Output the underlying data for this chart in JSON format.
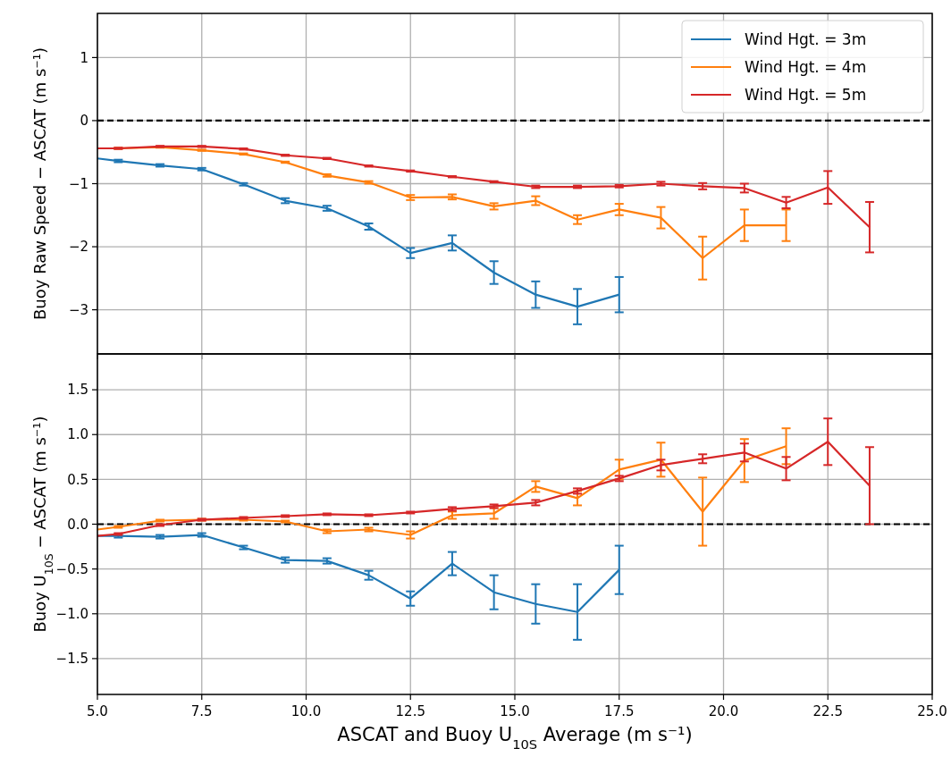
{
  "chart_data": [
    {
      "type": "line",
      "ylabel": "Buoy Raw Speed − ASCAT (m s⁻¹)",
      "x": [
        5.0,
        5.5,
        6.5,
        7.5,
        8.5,
        9.5,
        10.5,
        11.5,
        12.5,
        13.5,
        14.5,
        15.5,
        16.5,
        17.5,
        18.5,
        19.5,
        20.5,
        21.5,
        22.5,
        23.5
      ],
      "xlim": [
        5,
        25
      ],
      "xticks": [
        5,
        7.5,
        10,
        12.5,
        15,
        17.5,
        20,
        22.5,
        25
      ],
      "ylim": [
        -3.7,
        1.7
      ],
      "yticks": [
        {
          "value": -3,
          "label": "−3"
        },
        {
          "value": -2,
          "label": "−2"
        },
        {
          "value": -1,
          "label": "−1"
        },
        0,
        1
      ],
      "grid": true,
      "legend": "top right",
      "tick_labels": "y",
      "ref_lines": [
        {
          "axis": "y",
          "value": 0,
          "color": "#000000",
          "line_style": "dashed"
        }
      ],
      "series": [
        {
          "name": "Wind Hgt. = 3m",
          "color": "#1f77b4",
          "values": [
            -0.6,
            -0.64,
            -0.71,
            -0.77,
            -1.01,
            -1.27,
            -1.39,
            -1.68,
            -2.1,
            -1.94,
            -2.41,
            -2.76,
            -2.95,
            -2.76,
            null,
            null,
            null,
            null,
            null,
            null
          ],
          "errors": [
            null,
            0.02,
            0.02,
            0.02,
            0.02,
            0.04,
            0.04,
            0.05,
            0.08,
            0.12,
            0.18,
            0.21,
            0.28,
            0.28,
            null,
            null,
            null,
            null,
            null,
            null
          ]
        },
        {
          "name": "Wind Hgt. = 4m",
          "color": "#ff7f0e",
          "values": [
            -0.44,
            -0.44,
            -0.42,
            -0.47,
            -0.53,
            -0.66,
            -0.87,
            -0.98,
            -1.22,
            -1.21,
            -1.36,
            -1.27,
            -1.57,
            -1.41,
            -1.54,
            -2.18,
            -1.66,
            -1.66,
            null,
            null
          ],
          "errors": [
            null,
            0.01,
            0.01,
            0.01,
            0.01,
            0.01,
            0.02,
            0.02,
            0.04,
            0.04,
            0.05,
            0.07,
            0.07,
            0.09,
            0.17,
            0.34,
            0.25,
            0.25,
            null,
            null
          ]
        },
        {
          "name": "Wind Hgt. = 5m",
          "color": "#d62728",
          "values": [
            -0.44,
            -0.44,
            -0.41,
            -0.41,
            -0.45,
            -0.55,
            -0.6,
            -0.72,
            -0.8,
            -0.89,
            -0.97,
            -1.05,
            -1.05,
            -1.04,
            -1.0,
            -1.04,
            -1.07,
            -1.3,
            -1.06,
            -1.69
          ],
          "errors": [
            null,
            0.01,
            0.01,
            0.01,
            0.01,
            0.01,
            0.01,
            0.01,
            0.01,
            0.01,
            0.01,
            0.02,
            0.02,
            0.02,
            0.03,
            0.05,
            0.07,
            0.09,
            0.26,
            0.4
          ]
        }
      ]
    },
    {
      "type": "line",
      "ylabel": "Buoy U$_{10S}$ − ASCAT (m s⁻¹)",
      "xlabel": "ASCAT and Buoy U$_{10S}$ Average (m s⁻¹)",
      "x": [
        5.0,
        5.5,
        6.5,
        7.5,
        8.5,
        9.5,
        10.5,
        11.5,
        12.5,
        13.5,
        14.5,
        15.5,
        16.5,
        17.5,
        18.5,
        19.5,
        20.5,
        21.5,
        22.5,
        23.5
      ],
      "xlim": [
        5,
        25
      ],
      "xticks": [
        {
          "value": 5,
          "label": "5.0"
        },
        7.5,
        {
          "value": 10,
          "label": "10.0"
        },
        12.5,
        {
          "value": 15,
          "label": "15.0"
        },
        17.5,
        {
          "value": 20,
          "label": "20.0"
        },
        22.5,
        {
          "value": 25,
          "label": "25.0"
        }
      ],
      "ylim": [
        -1.9,
        1.9
      ],
      "yticks": [
        {
          "value": -1.5,
          "label": "−1.5"
        },
        {
          "value": -1,
          "label": "−1.0"
        },
        {
          "value": -0.5,
          "label": "−0.5"
        },
        {
          "value": 0,
          "label": "0.0"
        },
        0.5,
        {
          "value": 1,
          "label": "1.0"
        },
        1.5
      ],
      "grid": true,
      "ref_lines": [
        {
          "axis": "y",
          "value": 0,
          "color": "#000000",
          "line_style": "dashed"
        }
      ],
      "series": [
        {
          "color": "#1f77b4",
          "values": [
            -0.13,
            -0.13,
            -0.14,
            -0.12,
            -0.26,
            -0.4,
            -0.41,
            -0.57,
            -0.83,
            -0.44,
            -0.76,
            -0.89,
            -0.98,
            -0.51,
            null,
            null,
            null,
            null,
            null,
            null
          ],
          "errors": [
            null,
            0.02,
            0.02,
            0.02,
            0.02,
            0.03,
            0.03,
            0.05,
            0.08,
            0.13,
            0.19,
            0.22,
            0.31,
            0.27,
            null,
            null,
            null,
            null,
            null,
            null
          ]
        },
        {
          "color": "#ff7f0e",
          "values": [
            -0.06,
            -0.03,
            0.04,
            0.05,
            0.05,
            0.03,
            -0.08,
            -0.06,
            -0.12,
            0.1,
            0.12,
            0.42,
            0.29,
            0.61,
            0.72,
            0.14,
            0.71,
            0.87,
            null,
            null
          ],
          "errors": [
            null,
            0.01,
            0.01,
            0.01,
            0.01,
            0.01,
            0.02,
            0.02,
            0.04,
            0.04,
            0.06,
            0.06,
            0.08,
            0.11,
            0.19,
            0.38,
            0.24,
            0.2,
            null,
            null
          ]
        },
        {
          "color": "#d62728",
          "values": [
            -0.13,
            -0.11,
            -0.01,
            0.05,
            0.07,
            0.09,
            0.11,
            0.1,
            0.13,
            0.17,
            0.2,
            0.24,
            0.37,
            0.51,
            0.66,
            0.73,
            0.8,
            0.62,
            0.92,
            0.43
          ],
          "errors": [
            null,
            0.01,
            0.01,
            0.01,
            0.01,
            0.01,
            0.01,
            0.01,
            0.01,
            0.02,
            0.02,
            0.03,
            0.03,
            0.03,
            0.06,
            0.05,
            0.1,
            0.13,
            0.26,
            0.43
          ]
        }
      ]
    }
  ]
}
